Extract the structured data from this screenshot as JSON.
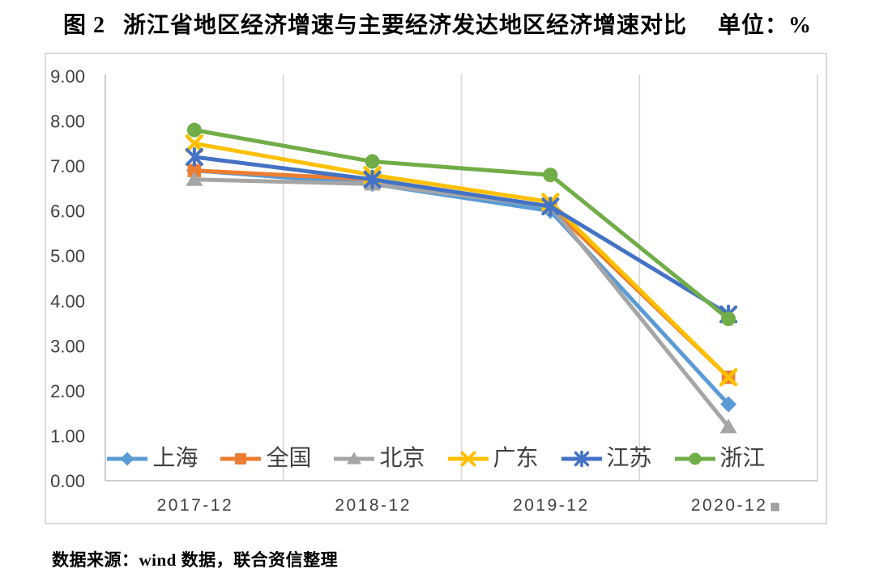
{
  "header": {
    "figure_label": "图 2",
    "title": "浙江省地区经济增速与主要经济发达地区经济增速对比",
    "unit": "单位：%"
  },
  "source_note": "数据来源：wind 数据，联合资信整理",
  "chart_data": {
    "type": "line",
    "title": "图 2 浙江省地区经济增速与主要经济发达地区经济增速对比",
    "unit": "%",
    "categories": [
      "2017-12",
      "2018-12",
      "2019-12",
      "2020-12"
    ],
    "series": [
      {
        "name": "上海",
        "key": "shanghai",
        "marker": "diamond",
        "color": "#5B9BD5",
        "values": [
          6.9,
          6.6,
          6.0,
          1.7
        ]
      },
      {
        "name": "全国",
        "key": "national",
        "marker": "square",
        "color": "#ED7D31",
        "values": [
          6.9,
          6.7,
          6.1,
          2.3
        ]
      },
      {
        "name": "北京",
        "key": "beijing",
        "marker": "triangle",
        "color": "#A5A5A5",
        "values": [
          6.7,
          6.6,
          6.1,
          1.2
        ]
      },
      {
        "name": "广东",
        "key": "guangdong",
        "marker": "x",
        "color": "#FFC000",
        "values": [
          7.5,
          6.8,
          6.2,
          2.3
        ]
      },
      {
        "name": "江苏",
        "key": "jiangsu",
        "marker": "asterisk",
        "color": "#4472C4",
        "values": [
          7.2,
          6.7,
          6.1,
          3.7
        ]
      },
      {
        "name": "浙江",
        "key": "zhejiang",
        "marker": "circle",
        "color": "#70AD47",
        "values": [
          7.8,
          7.1,
          6.8,
          3.6
        ]
      }
    ],
    "ylim": [
      0,
      9
    ],
    "y_tick_labels": [
      "0.00",
      "1.00",
      "2.00",
      "3.00",
      "4.00",
      "5.00",
      "6.00",
      "7.00",
      "8.00",
      "9.00"
    ],
    "xlabel": "",
    "ylabel": "",
    "grid": "vertical-only",
    "legend_position": "bottom-inside",
    "axis_color": "#C6C6C6",
    "gridline_color": "#D9D9D9",
    "tick_label_color": "#404040"
  }
}
